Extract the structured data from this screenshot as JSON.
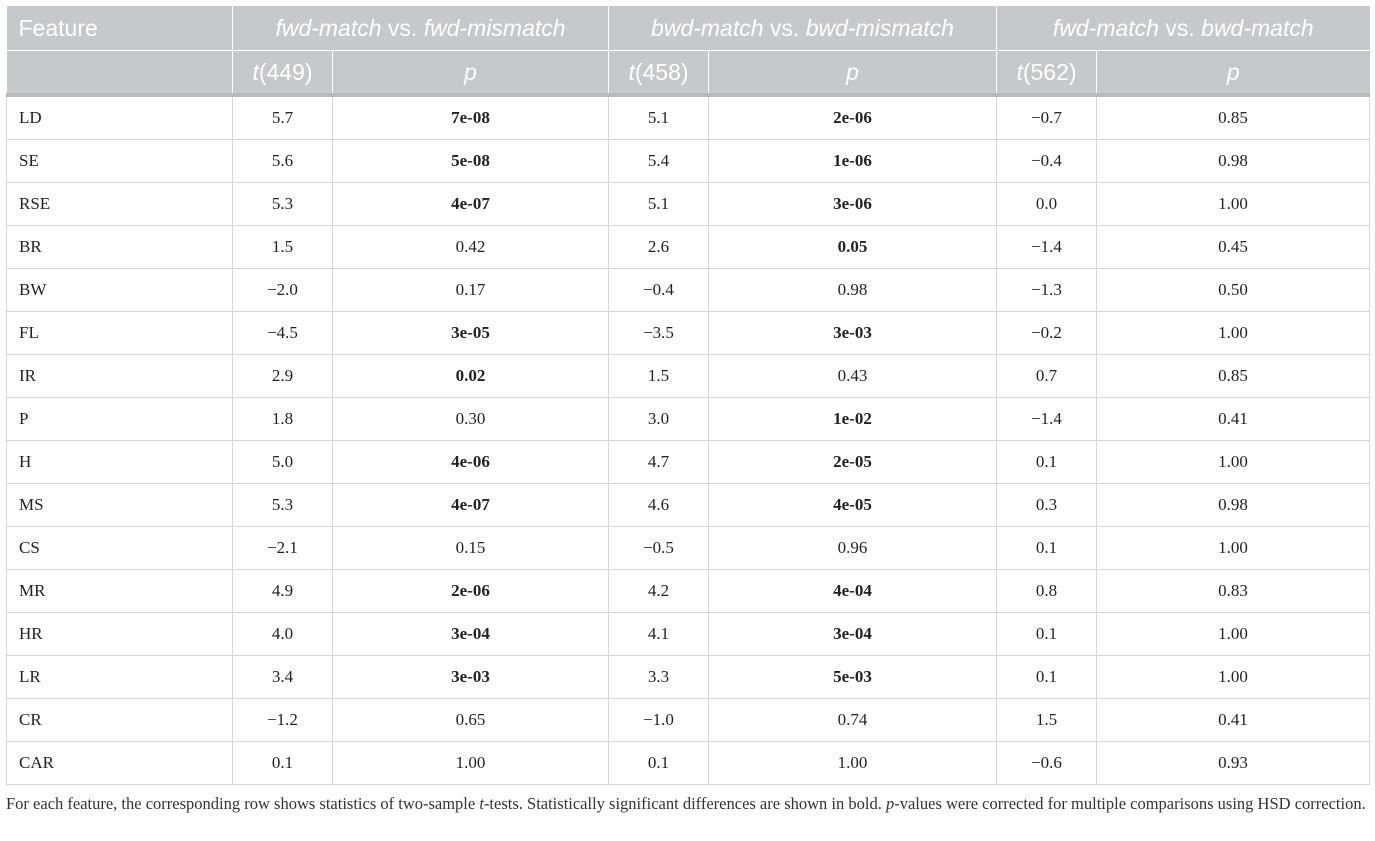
{
  "header": {
    "feature_label": "Feature",
    "groups": [
      {
        "a": "fwd-match",
        "vs": " vs. ",
        "b": "fwd-mismatch",
        "t_label": "t",
        "df": "(449)",
        "p_label": "p"
      },
      {
        "a": "bwd-match",
        "vs": " vs. ",
        "b": "bwd-mismatch",
        "t_label": "t",
        "df": "(458)",
        "p_label": "p"
      },
      {
        "a": "fwd-match",
        "vs": " vs. ",
        "b": "bwd-match",
        "t_label": "t",
        "df": "(562)",
        "p_label": "p"
      }
    ]
  },
  "rows": [
    {
      "feature": "LD",
      "t1": "5.7",
      "p1": "7e-08",
      "s1": true,
      "t2": "5.1",
      "p2": "2e-06",
      "s2": true,
      "t3": "−0.7",
      "p3": "0.85",
      "s3": false
    },
    {
      "feature": "SE",
      "t1": "5.6",
      "p1": "5e-08",
      "s1": true,
      "t2": "5.4",
      "p2": "1e-06",
      "s2": true,
      "t3": "−0.4",
      "p3": "0.98",
      "s3": false
    },
    {
      "feature": "RSE",
      "t1": "5.3",
      "p1": "4e-07",
      "s1": true,
      "t2": "5.1",
      "p2": "3e-06",
      "s2": true,
      "t3": "0.0",
      "p3": "1.00",
      "s3": false
    },
    {
      "feature": "BR",
      "t1": "1.5",
      "p1": "0.42",
      "s1": false,
      "t2": "2.6",
      "p2": "0.05",
      "s2": true,
      "t3": "−1.4",
      "p3": "0.45",
      "s3": false
    },
    {
      "feature": "BW",
      "t1": "−2.0",
      "p1": "0.17",
      "s1": false,
      "t2": "−0.4",
      "p2": "0.98",
      "s2": false,
      "t3": "−1.3",
      "p3": "0.50",
      "s3": false
    },
    {
      "feature": "FL",
      "t1": "−4.5",
      "p1": "3e-05",
      "s1": true,
      "t2": "−3.5",
      "p2": "3e-03",
      "s2": true,
      "t3": "−0.2",
      "p3": "1.00",
      "s3": false
    },
    {
      "feature": "IR",
      "t1": "2.9",
      "p1": "0.02",
      "s1": true,
      "t2": "1.5",
      "p2": "0.43",
      "s2": false,
      "t3": "0.7",
      "p3": "0.85",
      "s3": false
    },
    {
      "feature": "P",
      "t1": "1.8",
      "p1": "0.30",
      "s1": false,
      "t2": "3.0",
      "p2": "1e-02",
      "s2": true,
      "t3": "−1.4",
      "p3": "0.41",
      "s3": false
    },
    {
      "feature": "H",
      "t1": "5.0",
      "p1": "4e-06",
      "s1": true,
      "t2": "4.7",
      "p2": "2e-05",
      "s2": true,
      "t3": "0.1",
      "p3": "1.00",
      "s3": false
    },
    {
      "feature": "MS",
      "t1": "5.3",
      "p1": "4e-07",
      "s1": true,
      "t2": "4.6",
      "p2": "4e-05",
      "s2": true,
      "t3": "0.3",
      "p3": "0.98",
      "s3": false
    },
    {
      "feature": "CS",
      "t1": "−2.1",
      "p1": "0.15",
      "s1": false,
      "t2": "−0.5",
      "p2": "0.96",
      "s2": false,
      "t3": "0.1",
      "p3": "1.00",
      "s3": false
    },
    {
      "feature": "MR",
      "t1": "4.9",
      "p1": "2e-06",
      "s1": true,
      "t2": "4.2",
      "p2": "4e-04",
      "s2": true,
      "t3": "0.8",
      "p3": "0.83",
      "s3": false
    },
    {
      "feature": "HR",
      "t1": "4.0",
      "p1": "3e-04",
      "s1": true,
      "t2": "4.1",
      "p2": "3e-04",
      "s2": true,
      "t3": "0.1",
      "p3": "1.00",
      "s3": false
    },
    {
      "feature": "LR",
      "t1": "3.4",
      "p1": "3e-03",
      "s1": true,
      "t2": "3.3",
      "p2": "5e-03",
      "s2": true,
      "t3": "0.1",
      "p3": "1.00",
      "s3": false
    },
    {
      "feature": "CR",
      "t1": "−1.2",
      "p1": "0.65",
      "s1": false,
      "t2": "−1.0",
      "p2": "0.74",
      "s2": false,
      "t3": "1.5",
      "p3": "0.41",
      "s3": false
    },
    {
      "feature": "CAR",
      "t1": "0.1",
      "p1": "1.00",
      "s1": false,
      "t2": "0.1",
      "p2": "1.00",
      "s2": false,
      "t3": "−0.6",
      "p3": "0.93",
      "s3": false
    }
  ],
  "footnote": {
    "part1": "For each feature, the corresponding row shows statistics of two-sample ",
    "t": "t",
    "part2": "-tests. Statistically significant differences are shown in bold. ",
    "p": "p",
    "part3": "-values were corrected for multiple comparisons using HSD correction."
  },
  "colors": {
    "header_bg": "#c6c9cc",
    "header_text": "#ffffff",
    "grid": "#d7d7d7"
  }
}
